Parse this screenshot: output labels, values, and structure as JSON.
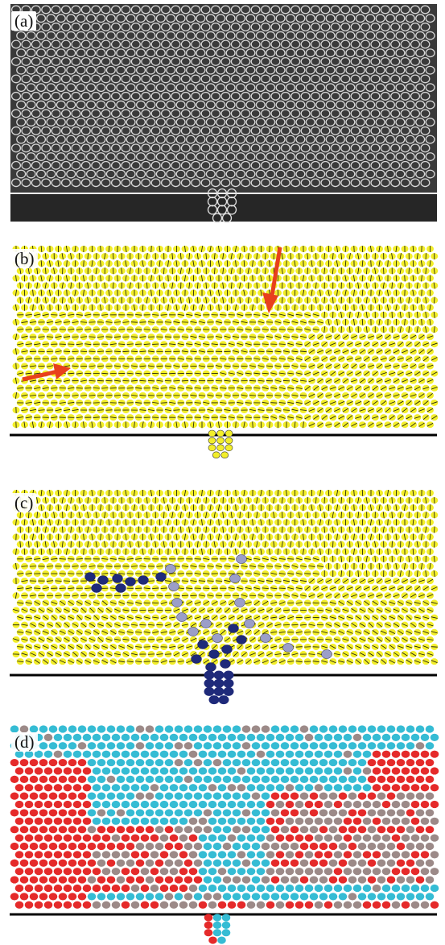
{
  "figure": {
    "panels": [
      {
        "label": "(a)",
        "style": "sem"
      },
      {
        "label": "(b)",
        "style": "vector"
      },
      {
        "label": "(c)",
        "style": "vector-defects"
      },
      {
        "label": "(d)",
        "style": "colored-orientation"
      }
    ],
    "colors": {
      "sem_background": "#3a3a3a",
      "sem_particle_edge": "#d8d8d8",
      "yellow_particle": "#f2ee2a",
      "navy_defect": "#1f2a7a",
      "red_arrow": "#e8401c",
      "cyan_particle": "#35bcd4",
      "red_particle": "#e52a2a",
      "gray_particle": "#9c8a88",
      "wall_line": "#000000"
    }
  }
}
